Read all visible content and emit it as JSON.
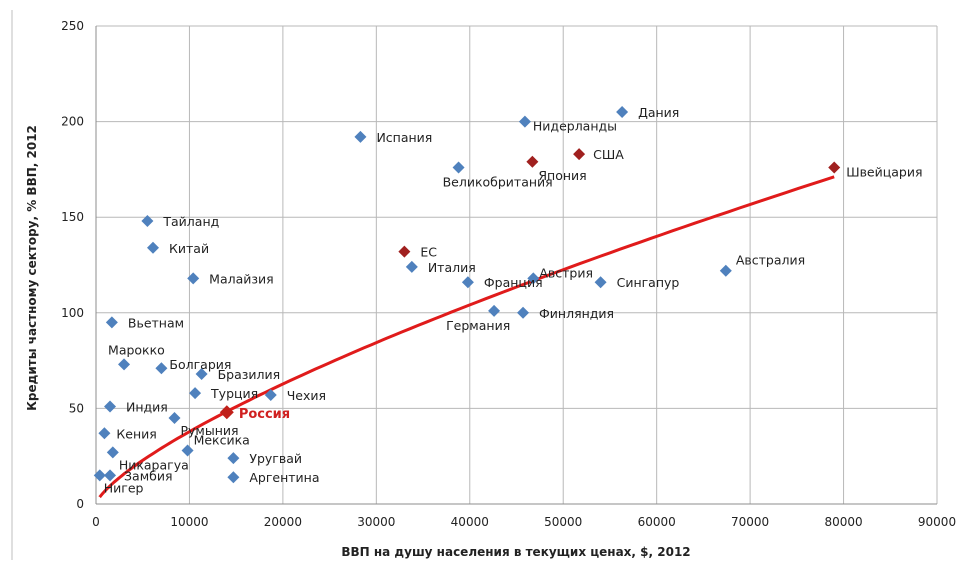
{
  "chart_data": {
    "type": "scatter",
    "xlabel": "ВВП на душу населения в текущих ценах, $, 2012",
    "ylabel": "Кредиты частному сектору, % ВВП, 2012",
    "xlim": [
      0,
      90000
    ],
    "ylim": [
      0,
      250
    ],
    "x_ticks": [
      "0",
      "10000",
      "20000",
      "30000",
      "40000",
      "50000",
      "60000",
      "70000",
      "80000",
      "90000"
    ],
    "y_ticks": [
      "0",
      "50",
      "100",
      "150",
      "200",
      "250"
    ],
    "grid": true,
    "legend": "none",
    "colors": {
      "base": "#4f81bd",
      "highlight": "#a0201f",
      "russia": "#c0201a",
      "trend": "#e01b1b",
      "grid": "#b8b8b8"
    },
    "points": [
      {
        "name": "Нигер",
        "x": 400,
        "y": 15,
        "group": "base"
      },
      {
        "name": "Замбия",
        "x": 1500,
        "y": 15,
        "group": "base"
      },
      {
        "name": "Никарагуа",
        "x": 1800,
        "y": 27,
        "group": "base"
      },
      {
        "name": "Кения",
        "x": 900,
        "y": 37,
        "group": "base"
      },
      {
        "name": "Индия",
        "x": 1500,
        "y": 51,
        "group": "base"
      },
      {
        "name": "Вьетнам",
        "x": 1700,
        "y": 95,
        "group": "base"
      },
      {
        "name": "Марокко",
        "x": 3000,
        "y": 73,
        "group": "base"
      },
      {
        "name": "Болгария",
        "x": 7000,
        "y": 71,
        "group": "base"
      },
      {
        "name": "Тайланд",
        "x": 5500,
        "y": 148,
        "group": "base"
      },
      {
        "name": "Китай",
        "x": 6100,
        "y": 134,
        "group": "base"
      },
      {
        "name": "Малайзия",
        "x": 10400,
        "y": 118,
        "group": "base"
      },
      {
        "name": "Бразилия",
        "x": 11300,
        "y": 68,
        "group": "base"
      },
      {
        "name": "Турция",
        "x": 10600,
        "y": 58,
        "group": "base"
      },
      {
        "name": "Румыния",
        "x": 8400,
        "y": 45,
        "group": "base"
      },
      {
        "name": "Мексика",
        "x": 9800,
        "y": 28,
        "group": "base"
      },
      {
        "name": "Россия",
        "x": 14000,
        "y": 48,
        "group": "russia"
      },
      {
        "name": "Уругвай",
        "x": 14700,
        "y": 24,
        "group": "base"
      },
      {
        "name": "Аргентина",
        "x": 14700,
        "y": 14,
        "group": "base"
      },
      {
        "name": "Чехия",
        "x": 18700,
        "y": 57,
        "group": "base"
      },
      {
        "name": "Испания",
        "x": 28300,
        "y": 192,
        "group": "base"
      },
      {
        "name": "ЕС",
        "x": 33000,
        "y": 132,
        "group": "highlight"
      },
      {
        "name": "Италия",
        "x": 33800,
        "y": 124,
        "group": "base"
      },
      {
        "name": "Великобритания",
        "x": 38800,
        "y": 176,
        "group": "base"
      },
      {
        "name": "Франция",
        "x": 39800,
        "y": 116,
        "group": "base"
      },
      {
        "name": "Германия",
        "x": 42600,
        "y": 101,
        "group": "base"
      },
      {
        "name": "Финляндия",
        "x": 45700,
        "y": 100,
        "group": "base"
      },
      {
        "name": "Нидерланды",
        "x": 45900,
        "y": 200,
        "group": "base"
      },
      {
        "name": "Япония",
        "x": 46700,
        "y": 179,
        "group": "highlight"
      },
      {
        "name": "Австрия",
        "x": 46800,
        "y": 118,
        "group": "base"
      },
      {
        "name": "США",
        "x": 51700,
        "y": 183,
        "group": "highlight"
      },
      {
        "name": "Сингапур",
        "x": 54000,
        "y": 116,
        "group": "base"
      },
      {
        "name": "Дания",
        "x": 56300,
        "y": 205,
        "group": "base"
      },
      {
        "name": "Австралия",
        "x": 67400,
        "y": 122,
        "group": "base"
      },
      {
        "name": "Швейцария",
        "x": 79000,
        "y": 176,
        "group": "highlight"
      }
    ],
    "trendline": {
      "type": "power",
      "coef": 0.0455,
      "exponent": 0.73,
      "x_range": [
        400,
        79000
      ]
    }
  }
}
